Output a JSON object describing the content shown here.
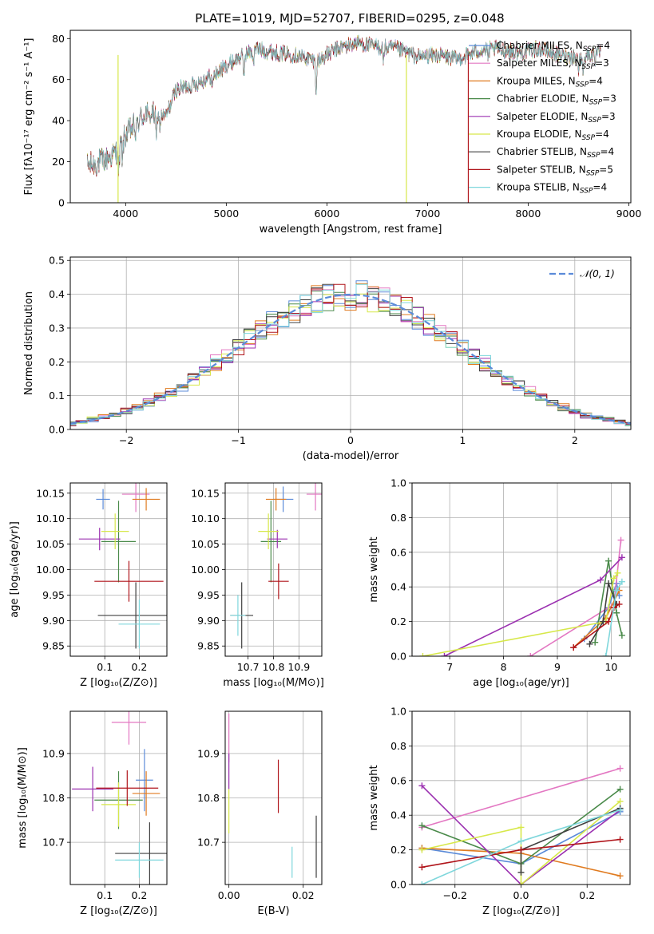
{
  "figure": {
    "title": "PLATE=1019, MJD=52707, FIBERID=0295, z=0.048"
  },
  "chart_data": [
    {
      "type": "line",
      "name": "spectrum",
      "xlabel": "wavelength [Angstrom, rest frame]",
      "ylabel": "Flux [fλ10⁻¹⁷ erg cm⁻² s⁻¹ A⁻¹]",
      "xlim": [
        3450,
        9020
      ],
      "ylim": [
        0,
        84
      ],
      "xticks": [
        4000,
        5000,
        6000,
        7000,
        8000,
        9000
      ],
      "yticks": [
        0,
        20,
        40,
        60,
        80
      ],
      "legend_position": "right",
      "series": [
        {
          "name": "Chabrier MILES, N_SSP=4",
          "color": "#5b8bd9"
        },
        {
          "name": "Salpeter MILES, N_SSP=3",
          "color": "#e377c2"
        },
        {
          "name": "Kroupa MILES, N_SSP=4",
          "color": "#e07b20"
        },
        {
          "name": "Chabrier ELODIE, N_SSP=3",
          "color": "#4a8a4a"
        },
        {
          "name": "Salpeter ELODIE, N_SSP=3",
          "color": "#9b30b0"
        },
        {
          "name": "Kroupa ELODIE, N_SSP=4",
          "color": "#d7e84a"
        },
        {
          "name": "Chabrier STELIB, N_SSP=4",
          "color": "#404040"
        },
        {
          "name": "Salpeter STELIB, N_SSP=5",
          "color": "#b0151b"
        },
        {
          "name": "Kroupa STELIB, N_SSP=4",
          "color": "#7fd7dc"
        }
      ],
      "continuum": {
        "x": [
          3600,
          3700,
          3800,
          3900,
          4000,
          4100,
          4200,
          4300,
          4400,
          4500,
          4700,
          4900,
          5100,
          5300,
          5500,
          5700,
          5900,
          6100,
          6300,
          6500,
          6700,
          6900,
          7100,
          7300,
          7500,
          7700,
          7900,
          8100,
          8300,
          8500,
          8700
        ],
        "y": [
          18,
          19,
          21,
          24,
          33,
          38,
          44,
          43,
          42,
          55,
          58,
          63,
          70,
          75,
          73,
          72,
          69,
          75,
          78,
          76,
          75,
          71,
          72,
          70,
          74,
          75,
          73,
          75,
          72,
          71,
          73
        ]
      }
    },
    {
      "type": "line",
      "name": "residual-histogram",
      "xlabel": "(data-model)/error",
      "ylabel": "Normed distribution",
      "xlim": [
        -2.5,
        2.5
      ],
      "ylim": [
        0,
        0.51
      ],
      "xticks": [
        -2,
        -1,
        0,
        1,
        2
      ],
      "yticks": [
        0.0,
        0.1,
        0.2,
        0.3,
        0.4,
        0.5
      ],
      "grid": true,
      "legend_position": "top-right",
      "reference": {
        "name": "𝒩(0, 1)",
        "color": "#5b8bd9",
        "style": "dashed"
      },
      "bin_width": 0.1
    },
    {
      "type": "scatter",
      "name": "age-vs-Z",
      "xlabel": "Z [log₁₀(Z/Z⊙)]",
      "ylabel": "age  [log₁₀(age/yr)]",
      "xlim": [
        0.0,
        0.28
      ],
      "ylim": [
        9.83,
        10.17
      ],
      "xticks": [
        0.1,
        0.2
      ],
      "yticks": [
        9.85,
        9.9,
        9.95,
        10.0,
        10.05,
        10.1,
        10.15
      ],
      "grid": true,
      "points": [
        {
          "x": 0.095,
          "xerr": 0.02,
          "y": 10.138,
          "yerr": 0.02,
          "color": "#5b8bd9"
        },
        {
          "x": 0.19,
          "xerr": 0.04,
          "y": 10.148,
          "yerr": 0.035,
          "color": "#e377c2"
        },
        {
          "x": 0.22,
          "xerr": 0.04,
          "y": 10.138,
          "yerr": 0.022,
          "color": "#e07b20"
        },
        {
          "x": 0.14,
          "xerr": 0.05,
          "y": 10.055,
          "yerr": 0.08,
          "color": "#4a8a4a"
        },
        {
          "x": 0.085,
          "xerr": 0.06,
          "y": 10.06,
          "yerr": 0.022,
          "color": "#9b30b0"
        },
        {
          "x": 0.13,
          "xerr": 0.04,
          "y": 10.075,
          "yerr": 0.035,
          "color": "#d7e84a"
        },
        {
          "x": 0.19,
          "xerr": 0.11,
          "y": 9.91,
          "yerr": 0.065,
          "color": "#404040"
        },
        {
          "x": 0.17,
          "xerr": 0.1,
          "y": 9.977,
          "yerr": 0.04,
          "color": "#b0151b"
        },
        {
          "x": 0.2,
          "xerr": 0.06,
          "y": 9.893,
          "yerr": 0.048,
          "color": "#7fd7dc"
        }
      ]
    },
    {
      "type": "scatter",
      "name": "age-vs-mass",
      "xlabel": "mass [log₁₀(M/M⊙)]",
      "ylabel": "",
      "xlim": [
        10.61,
        10.99
      ],
      "ylim": [
        9.83,
        10.17
      ],
      "xticks": [
        10.7,
        10.8,
        10.9
      ],
      "yticks": [
        9.85,
        9.9,
        9.95,
        10.0,
        10.05,
        10.1,
        10.15
      ],
      "grid": true,
      "points": [
        {
          "x": 10.838,
          "xerr": 0.04,
          "y": 10.138,
          "yerr": 0.025,
          "color": "#5b8bd9"
        },
        {
          "x": 10.965,
          "xerr": 0.035,
          "y": 10.148,
          "yerr": 0.032,
          "color": "#e377c2"
        },
        {
          "x": 10.81,
          "xerr": 0.04,
          "y": 10.138,
          "yerr": 0.022,
          "color": "#e07b20"
        },
        {
          "x": 10.79,
          "xerr": 0.04,
          "y": 10.055,
          "yerr": 0.08,
          "color": "#4a8a4a"
        },
        {
          "x": 10.815,
          "xerr": 0.04,
          "y": 10.06,
          "yerr": 0.018,
          "color": "#9b30b0"
        },
        {
          "x": 10.78,
          "xerr": 0.04,
          "y": 10.075,
          "yerr": 0.035,
          "color": "#d7e84a"
        },
        {
          "x": 10.675,
          "xerr": 0.045,
          "y": 9.91,
          "yerr": 0.065,
          "color": "#404040"
        },
        {
          "x": 10.82,
          "xerr": 0.04,
          "y": 9.977,
          "yerr": 0.035,
          "color": "#b0151b"
        },
        {
          "x": 10.66,
          "xerr": 0.03,
          "y": 9.91,
          "yerr": 0.04,
          "color": "#7fd7dc"
        }
      ]
    },
    {
      "type": "line",
      "name": "mass-weight-vs-age",
      "xlabel": "age  [log₁₀(age/yr)]",
      "ylabel": "mass weight",
      "xlim": [
        6.3,
        10.35
      ],
      "ylim": [
        0,
        1
      ],
      "xticks": [
        7,
        8,
        9,
        10
      ],
      "yticks": [
        0.0,
        0.2,
        0.4,
        0.6,
        0.8,
        1.0
      ],
      "grid": true,
      "series": [
        {
          "color": "#5b8bd9",
          "x": [
            9.5,
            9.95,
            10.1,
            10.15
          ],
          "y": [
            0.1,
            0.28,
            0.42,
            0.35
          ]
        },
        {
          "color": "#e377c2",
          "x": [
            8.5,
            10.05,
            10.18
          ],
          "y": [
            0.0,
            0.3,
            0.67
          ]
        },
        {
          "color": "#e07b20",
          "x": [
            9.3,
            9.9,
            10.15
          ],
          "y": [
            0.05,
            0.22,
            0.38
          ]
        },
        {
          "color": "#4a8a4a",
          "x": [
            9.7,
            9.95,
            10.1,
            10.2
          ],
          "y": [
            0.08,
            0.55,
            0.25,
            0.12
          ]
        },
        {
          "color": "#9b30b0",
          "x": [
            6.9,
            9.8,
            10.2
          ],
          "y": [
            0.0,
            0.44,
            0.57
          ]
        },
        {
          "color": "#d7e84a",
          "x": [
            6.5,
            9.9,
            10.05,
            10.12
          ],
          "y": [
            0.0,
            0.2,
            0.45,
            0.48
          ]
        },
        {
          "color": "#404040",
          "x": [
            9.6,
            9.85,
            9.95,
            10.1
          ],
          "y": [
            0.07,
            0.2,
            0.42,
            0.3
          ]
        },
        {
          "color": "#b0151b",
          "x": [
            9.3,
            9.95,
            10.05,
            10.15
          ],
          "y": [
            0.05,
            0.2,
            0.28,
            0.3
          ]
        },
        {
          "color": "#7fd7dc",
          "x": [
            9.9,
            10.1,
            10.2
          ],
          "y": [
            0.0,
            0.38,
            0.43
          ]
        }
      ]
    },
    {
      "type": "scatter",
      "name": "mass-vs-Z",
      "xlabel": "Z [log₁₀(Z/Z⊙)]",
      "ylabel": "mass [log₁₀(M/M⊙)]",
      "xlim": [
        0.0,
        0.28
      ],
      "ylim": [
        10.605,
        10.995
      ],
      "xticks": [
        0.1,
        0.2
      ],
      "yticks": [
        10.7,
        10.8,
        10.9
      ],
      "grid": true,
      "points": [
        {
          "x": 0.215,
          "xerr": 0.025,
          "y": 10.84,
          "yerr": 0.07,
          "color": "#5b8bd9"
        },
        {
          "x": 0.17,
          "xerr": 0.05,
          "y": 10.97,
          "yerr": 0.05,
          "color": "#e377c2"
        },
        {
          "x": 0.22,
          "xerr": 0.04,
          "y": 10.81,
          "yerr": 0.05,
          "color": "#e07b20"
        },
        {
          "x": 0.14,
          "xerr": 0.07,
          "y": 10.795,
          "yerr": 0.065,
          "color": "#4a8a4a"
        },
        {
          "x": 0.065,
          "xerr": 0.06,
          "y": 10.82,
          "yerr": 0.05,
          "color": "#9b30b0"
        },
        {
          "x": 0.14,
          "xerr": 0.05,
          "y": 10.785,
          "yerr": 0.05,
          "color": "#d7e84a"
        },
        {
          "x": 0.23,
          "xerr": 0.1,
          "y": 10.675,
          "yerr": 0.07,
          "color": "#404040"
        },
        {
          "x": 0.165,
          "xerr": 0.09,
          "y": 10.822,
          "yerr": 0.04,
          "color": "#b0151b"
        },
        {
          "x": 0.2,
          "xerr": 0.07,
          "y": 10.66,
          "yerr": 0.04,
          "color": "#7fd7dc"
        }
      ]
    },
    {
      "type": "scatter",
      "name": "mass-vs-ebv",
      "xlabel": "E(B-V)",
      "ylabel": "",
      "xlim": [
        -0.001,
        0.025
      ],
      "ylim": [
        10.605,
        10.995
      ],
      "xticks": [
        0.0,
        0.02
      ],
      "yticks": [
        10.7,
        10.8,
        10.9
      ],
      "grid": true,
      "points": [
        {
          "x": 0.0,
          "y": 10.935,
          "yerr": 0.055,
          "color": "#e377c2"
        },
        {
          "x": 0.0,
          "y": 10.86,
          "yerr": 0.04,
          "color": "#9b30b0"
        },
        {
          "x": 0.0,
          "y": 10.77,
          "yerr": 0.05,
          "color": "#d7e84a"
        },
        {
          "x": 0.0133,
          "y": 10.826,
          "yerr": 0.06,
          "color": "#b0151b"
        },
        {
          "x": 0.017,
          "y": 10.655,
          "yerr": 0.035,
          "color": "#7fd7dc"
        },
        {
          "x": 0.0235,
          "y": 10.69,
          "yerr": 0.07,
          "color": "#404040"
        }
      ]
    },
    {
      "type": "line",
      "name": "mass-weight-vs-Z",
      "xlabel": "Z [log₁₀(Z/Z⊙)]",
      "ylabel": "mass weight",
      "xlim": [
        -0.33,
        0.33
      ],
      "ylim": [
        0,
        1
      ],
      "xticks": [
        -0.2,
        0.0,
        0.2
      ],
      "yticks": [
        0.0,
        0.2,
        0.4,
        0.6,
        0.8,
        1.0
      ],
      "grid": true,
      "series": [
        {
          "color": "#5b8bd9",
          "x": [
            -0.3,
            0.0,
            0.3
          ],
          "y": [
            0.21,
            0.12,
            0.42
          ]
        },
        {
          "color": "#e377c2",
          "x": [
            -0.3,
            0.3
          ],
          "y": [
            0.33,
            0.67
          ]
        },
        {
          "color": "#e07b20",
          "x": [
            -0.3,
            0.0,
            0.3
          ],
          "y": [
            0.21,
            0.18,
            0.05
          ]
        },
        {
          "color": "#4a8a4a",
          "x": [
            -0.3,
            0.0,
            0.3
          ],
          "y": [
            0.34,
            0.12,
            0.55
          ]
        },
        {
          "color": "#9b30b0",
          "x": [
            -0.3,
            0.0,
            0.3
          ],
          "y": [
            0.57,
            0.0,
            0.43
          ]
        },
        {
          "color": "#d7e84a",
          "x": [
            -0.3,
            0.0,
            0.0,
            0.3
          ],
          "y": [
            0.2,
            0.33,
            0.0,
            0.48
          ]
        },
        {
          "color": "#404040",
          "x": [
            0.0,
            0.0,
            0.3
          ],
          "y": [
            0.07,
            0.2,
            0.44
          ]
        },
        {
          "color": "#b0151b",
          "x": [
            -0.3,
            0.0,
            0.3
          ],
          "y": [
            0.1,
            0.2,
            0.26
          ]
        },
        {
          "color": "#7fd7dc",
          "x": [
            -0.3,
            0.0,
            0.3
          ],
          "y": [
            0.0,
            0.25,
            0.43
          ]
        }
      ]
    }
  ]
}
